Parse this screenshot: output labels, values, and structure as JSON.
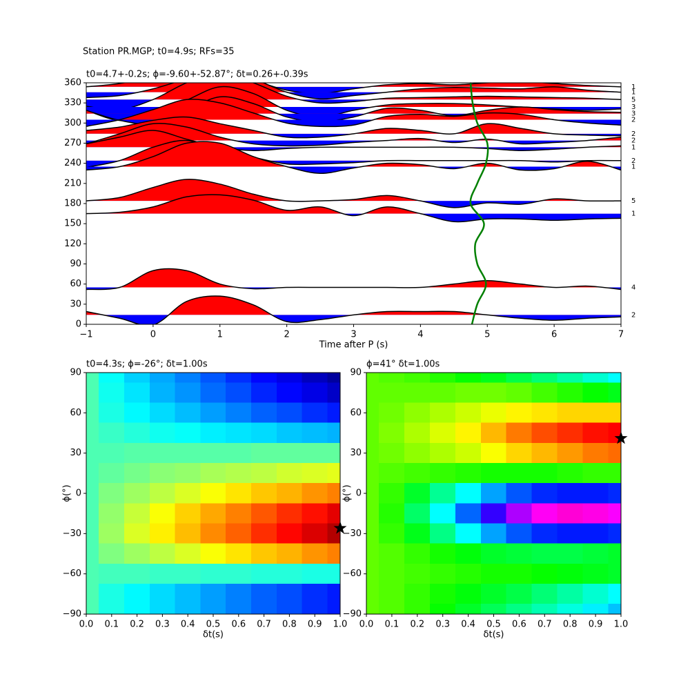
{
  "title": "Station PR.MGP; t0=4.9s; RFs=35",
  "chart_data": [
    {
      "type": "wiggle",
      "title": "t0=4.7+-0.2s; ϕ=-9.60+-52.87°; δt=0.26+-0.39s",
      "xlabel": "Time after P (s)",
      "xlim": [
        -1,
        7
      ],
      "xticks": [
        {
          "value": -1,
          "label": "−1"
        },
        0,
        1,
        2,
        3,
        4,
        5,
        6,
        7
      ],
      "ylim": [
        0,
        360
      ],
      "yticks": [
        0,
        30,
        60,
        90,
        120,
        150,
        180,
        210,
        240,
        270,
        300,
        330,
        360
      ],
      "positive_color": "#ff0000",
      "negative_color": "#0000ff",
      "x": [
        -1,
        -0.5,
        0,
        0.5,
        1,
        1.5,
        2,
        2.5,
        3,
        3.5,
        4,
        4.5,
        5,
        5.5,
        6,
        6.5,
        7
      ],
      "traces": [
        {
          "baz": 354,
          "count": 1,
          "values": [
            0,
            5,
            15,
            30,
            25,
            10,
            -5,
            -10,
            -3,
            3,
            5,
            3,
            6,
            8,
            5,
            2,
            0
          ]
        },
        {
          "baz": 346,
          "count": 1,
          "values": [
            -8,
            -5,
            5,
            20,
            35,
            20,
            0,
            -10,
            -5,
            0,
            5,
            7,
            6,
            5,
            8,
            3,
            0
          ]
        },
        {
          "baz": 335,
          "count": 5,
          "values": [
            -10,
            -15,
            0,
            25,
            40,
            25,
            5,
            -5,
            -3,
            2,
            3,
            4,
            5,
            4,
            3,
            2,
            0
          ]
        },
        {
          "baz": 324,
          "count": 3,
          "values": [
            -5,
            -20,
            -10,
            10,
            30,
            20,
            -5,
            -15,
            -5,
            3,
            5,
            5,
            3,
            0,
            -3,
            -5,
            -3
          ]
        },
        {
          "baz": 314,
          "count": 3,
          "values": [
            5,
            -10,
            -15,
            5,
            25,
            15,
            -5,
            -12,
            -5,
            8,
            5,
            -3,
            5,
            10,
            6,
            3,
            2
          ]
        },
        {
          "baz": 305,
          "count": 2,
          "values": [
            -10,
            0,
            15,
            30,
            25,
            10,
            -5,
            -10,
            -8,
            5,
            8,
            5,
            10,
            8,
            0,
            -5,
            -8
          ]
        },
        {
          "baz": 284,
          "count": 2,
          "values": [
            5,
            10,
            20,
            25,
            15,
            5,
            -5,
            -5,
            0,
            8,
            5,
            0,
            15,
            8,
            0,
            -2,
            -3
          ]
        },
        {
          "baz": 274,
          "count": 2,
          "values": [
            -5,
            10,
            25,
            20,
            5,
            -5,
            -8,
            -7,
            -3,
            0,
            3,
            -3,
            2,
            -5,
            -3,
            0,
            5
          ]
        },
        {
          "baz": 264,
          "count": 1,
          "values": [
            5,
            15,
            25,
            12,
            0,
            -5,
            -2,
            0,
            0,
            0,
            0,
            0,
            -2,
            -5,
            -3,
            0,
            2
          ]
        },
        {
          "baz": 244,
          "count": 2,
          "values": [
            -10,
            0,
            20,
            30,
            15,
            5,
            -5,
            -5,
            -3,
            0,
            0,
            0,
            0,
            0,
            -2,
            0,
            0
          ]
        },
        {
          "baz": 235,
          "count": 1,
          "values": [
            -5,
            0,
            15,
            35,
            35,
            15,
            0,
            -10,
            -2,
            5,
            3,
            -3,
            5,
            -5,
            -3,
            8,
            -5
          ]
        },
        {
          "baz": 184,
          "count": 5,
          "values": [
            0,
            5,
            20,
            32,
            25,
            10,
            0,
            0,
            2,
            8,
            0,
            -10,
            -3,
            -5,
            3,
            0,
            0
          ]
        },
        {
          "baz": 165,
          "count": 1,
          "values": [
            0,
            2,
            10,
            25,
            28,
            20,
            5,
            10,
            -3,
            10,
            0,
            -12,
            -8,
            -8,
            -10,
            -8,
            -7
          ]
        },
        {
          "baz": 55,
          "count": 4,
          "values": [
            -3,
            0,
            25,
            25,
            5,
            -2,
            0,
            0,
            0,
            0,
            0,
            5,
            10,
            5,
            0,
            2,
            -3
          ]
        },
        {
          "baz": 14,
          "count": 2,
          "values": [
            5,
            -5,
            -15,
            20,
            28,
            15,
            -10,
            -7,
            0,
            5,
            5,
            5,
            0,
            -5,
            -8,
            -5,
            -3
          ]
        }
      ],
      "t0_curve": {
        "color": "#008000",
        "baz": [
          0,
          30,
          60,
          90,
          120,
          150,
          180,
          210,
          240,
          270,
          300,
          330,
          360
        ],
        "t": [
          4.77,
          4.85,
          4.98,
          4.85,
          4.82,
          4.95,
          4.75,
          4.85,
          4.98,
          5.0,
          4.85,
          4.78,
          4.75
        ]
      }
    },
    {
      "type": "heatmap",
      "title": "t0=4.3s; ϕ=-26°; δt=1.00s",
      "xlabel": "δt(s)",
      "ylabel": "ϕ(°)",
      "colormap": "jet",
      "xlim": [
        0,
        1
      ],
      "xticks": [
        {
          "value": 0,
          "label": "0.0"
        },
        0.1,
        0.2,
        0.3,
        0.4,
        0.5,
        0.6,
        0.7,
        0.8,
        0.9,
        {
          "value": 1,
          "label": "1.0"
        }
      ],
      "ylim": [
        -90,
        90
      ],
      "yticks": [
        {
          "value": -90,
          "label": "−90"
        },
        {
          "value": -60,
          "label": "−60"
        },
        {
          "value": -30,
          "label": "−30"
        },
        0,
        30,
        60,
        90
      ],
      "x": [
        0,
        0.1,
        0.2,
        0.3,
        0.4,
        0.5,
        0.6,
        0.7,
        0.8,
        0.9,
        1
      ],
      "y": [
        90,
        75,
        60,
        45,
        30,
        15,
        0,
        -15,
        -30,
        -45,
        -60,
        -75,
        -90
      ],
      "z": [
        [
          0.45,
          0.38,
          0.33,
          0.29,
          0.25,
          0.21,
          0.17,
          0.13,
          0.1,
          0.06,
          0.03
        ],
        [
          0.45,
          0.39,
          0.35,
          0.3,
          0.27,
          0.23,
          0.2,
          0.16,
          0.13,
          0.1,
          0.07
        ],
        [
          0.45,
          0.4,
          0.37,
          0.34,
          0.31,
          0.28,
          0.25,
          0.22,
          0.2,
          0.17,
          0.15
        ],
        [
          0.45,
          0.43,
          0.41,
          0.39,
          0.38,
          0.36,
          0.35,
          0.34,
          0.32,
          0.31,
          0.3
        ],
        [
          0.45,
          0.45,
          0.46,
          0.46,
          0.46,
          0.46,
          0.46,
          0.47,
          0.47,
          0.47,
          0.47
        ],
        [
          0.45,
          0.47,
          0.49,
          0.51,
          0.52,
          0.54,
          0.55,
          0.56,
          0.58,
          0.59,
          0.6
        ],
        [
          0.45,
          0.5,
          0.53,
          0.56,
          0.59,
          0.62,
          0.65,
          0.68,
          0.7,
          0.73,
          0.75
        ],
        [
          0.45,
          0.52,
          0.57,
          0.62,
          0.67,
          0.71,
          0.75,
          0.79,
          0.83,
          0.86,
          0.9
        ],
        [
          0.45,
          0.53,
          0.59,
          0.64,
          0.69,
          0.74,
          0.78,
          0.83,
          0.87,
          0.91,
          0.95
        ],
        [
          0.45,
          0.5,
          0.53,
          0.56,
          0.59,
          0.62,
          0.65,
          0.68,
          0.7,
          0.73,
          0.75
        ],
        [
          0.45,
          0.44,
          0.44,
          0.43,
          0.43,
          0.42,
          0.42,
          0.41,
          0.41,
          0.4,
          0.4
        ],
        [
          0.45,
          0.4,
          0.37,
          0.34,
          0.31,
          0.28,
          0.25,
          0.22,
          0.2,
          0.17,
          0.15
        ],
        [
          0.45,
          0.4,
          0.37,
          0.34,
          0.31,
          0.28,
          0.25,
          0.22,
          0.2,
          0.17,
          0.15
        ]
      ],
      "star": {
        "x": 1.0,
        "y": -26
      }
    },
    {
      "type": "heatmap",
      "title": "ϕ=41° δt=1.00s",
      "xlabel": "δt(s)",
      "ylabel": "ϕ(°)",
      "colormap": "hsv",
      "xlim": [
        0,
        1
      ],
      "xticks": [
        {
          "value": 0,
          "label": "0.0"
        },
        0.1,
        0.2,
        0.3,
        0.4,
        0.5,
        0.6,
        0.7,
        0.8,
        0.9,
        {
          "value": 1,
          "label": "1.0"
        }
      ],
      "ylim": [
        -90,
        90
      ],
      "yticks": [
        {
          "value": -90,
          "label": "−90"
        },
        {
          "value": -60,
          "label": "−60"
        },
        {
          "value": -30,
          "label": "−30"
        },
        0,
        30,
        60,
        90
      ],
      "x": [
        0,
        0.1,
        0.2,
        0.3,
        0.4,
        0.5,
        0.6,
        0.7,
        0.8,
        0.9,
        1
      ],
      "y": [
        90,
        75,
        60,
        45,
        30,
        15,
        0,
        -15,
        -30,
        -45,
        -60,
        -75,
        -90
      ],
      "z": [
        [
          0.27,
          0.28,
          0.29,
          0.31,
          0.33,
          0.35,
          0.38,
          0.41,
          0.44,
          0.47,
          0.5
        ],
        [
          0.27,
          0.27,
          0.27,
          0.27,
          0.26,
          0.26,
          0.27,
          0.29,
          0.31,
          0.33,
          0.35
        ],
        [
          0.27,
          0.26,
          0.24,
          0.22,
          0.2,
          0.18,
          0.16,
          0.15,
          0.14,
          0.14,
          0.14
        ],
        [
          0.27,
          0.25,
          0.22,
          0.19,
          0.16,
          0.12,
          0.08,
          0.05,
          0.03,
          0.01,
          0.0
        ],
        [
          0.27,
          0.26,
          0.24,
          0.22,
          0.2,
          0.17,
          0.14,
          0.12,
          0.1,
          0.08,
          0.07
        ],
        [
          0.27,
          0.28,
          0.29,
          0.3,
          0.31,
          0.32,
          0.32,
          0.32,
          0.31,
          0.3,
          0.3
        ],
        [
          0.27,
          0.3,
          0.36,
          0.43,
          0.5,
          0.56,
          0.61,
          0.64,
          0.65,
          0.65,
          0.64
        ],
        [
          0.27,
          0.31,
          0.4,
          0.5,
          0.6,
          0.7,
          0.78,
          0.84,
          0.86,
          0.85,
          0.83
        ],
        [
          0.27,
          0.3,
          0.35,
          0.42,
          0.5,
          0.56,
          0.61,
          0.64,
          0.65,
          0.65,
          0.64
        ],
        [
          0.27,
          0.28,
          0.3,
          0.32,
          0.34,
          0.36,
          0.37,
          0.38,
          0.38,
          0.37,
          0.36
        ],
        [
          0.27,
          0.28,
          0.29,
          0.3,
          0.31,
          0.32,
          0.32,
          0.33,
          0.34,
          0.35,
          0.36
        ],
        [
          0.27,
          0.28,
          0.3,
          0.32,
          0.34,
          0.36,
          0.38,
          0.41,
          0.44,
          0.47,
          0.5
        ],
        [
          0.27,
          0.28,
          0.3,
          0.33,
          0.36,
          0.39,
          0.42,
          0.45,
          0.48,
          0.51,
          0.54
        ]
      ],
      "star": {
        "x": 1.0,
        "y": 41
      }
    }
  ]
}
